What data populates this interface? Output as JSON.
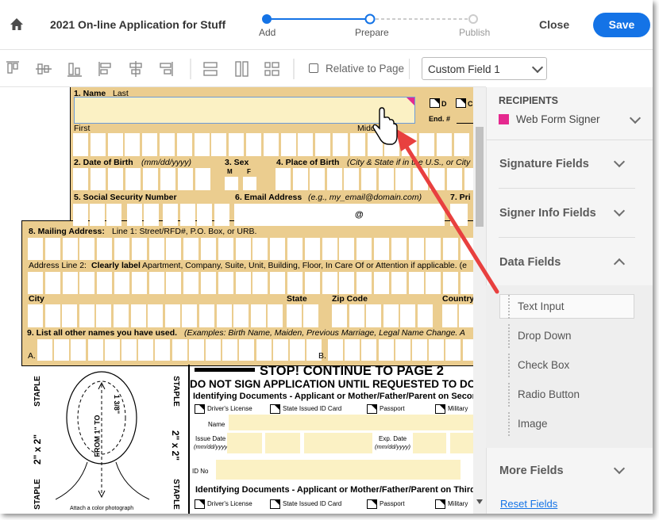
{
  "header": {
    "title": "2021 On-line Application for Stuff",
    "steps": [
      "Add",
      "Prepare",
      "Publish"
    ],
    "close": "Close",
    "save": "Save"
  },
  "toolbar": {
    "relative_to_page": "Relative to Page",
    "field_name": "Custom Field 1"
  },
  "form": {
    "name_label": "1.  Name",
    "last": "Last",
    "first": "First",
    "middle": "Middle",
    "opt_d": "D",
    "opt_c": "C",
    "end_no": "End. #",
    "dob_label": "2.  Date of Birth",
    "dob_format": "(mm/dd/yyyy)",
    "sex_label": "3.  Sex",
    "sex_m": "M",
    "sex_f": "F",
    "pob_label": "4.  Place of Birth",
    "pob_hint": "(City & State if in the U.S., or City",
    "ssn_label": "5.  Social Security Number",
    "email_label": "6.  Email Address",
    "email_hint": "(e.g., my_email@domain.com)",
    "email_at": "@",
    "item7": "7.  Pri",
    "mail_label": "8. Mailing Address:",
    "mail_line1": "Line 1: Street/RFD#, P.O. Box, or URB.",
    "line2_label": "Address Line 2:",
    "line2_hint": "Clearly label",
    "line2_rest": "Apartment, Company, Suite, Unit, Building, Floor, In Care Of or Attention if applicable. (e",
    "city": "City",
    "state": "State",
    "zip": "Zip Code",
    "country": "Country",
    "other_names_label": "9.  List all other names you have used.",
    "other_names_hint": "(Examples: Birth Name, Maiden, Previous Marriage, Legal Name Change.  A",
    "part_a": "A.",
    "part_b": "B."
  },
  "photo": {
    "staple": [
      "STAPLE",
      "STAPLE",
      "STAPLE",
      "STAPLE"
    ],
    "size": [
      "2\" x 2\"",
      "2\" x 2\""
    ],
    "range_from": "FROM 1\" TO",
    "range_to": "1 3/8\"",
    "attach": "Attach a color photograph"
  },
  "documents": {
    "stop": "STOP! CONTINUE TO PAGE 2",
    "do_not_sign": "DO NOT SIGN APPLICATION UNTIL REQUESTED TO DO",
    "second_heading": "Identifying Documents - Applicant or Mother/Father/Parent on Second",
    "second_types": [
      "Driver's License",
      "State Issued ID Card",
      "Passport",
      "Military"
    ],
    "name": "Name",
    "issue_date": "Issue Date",
    "issue_format": "(mm/dd/yyyy)",
    "exp_date": "Exp. Date",
    "exp_format": "(mm/dd/yyyy)",
    "id_no": "ID No",
    "third_heading": "Identifying Documents - Applicant or Mother/Father/Parent on Third S",
    "third_types": [
      "Driver's License",
      "State Issued ID Card",
      "Passport",
      "Military"
    ]
  },
  "panel": {
    "recipients_heading": "RECIPIENTS",
    "recipient": "Web Form Signer",
    "sections": [
      "Signature Fields",
      "Signer Info Fields",
      "Data Fields"
    ],
    "data_fields": [
      "Text Input",
      "Drop Down",
      "Check Box",
      "Radio Button",
      "Image"
    ],
    "more_fields": "More Fields",
    "reset": "Reset Fields"
  }
}
